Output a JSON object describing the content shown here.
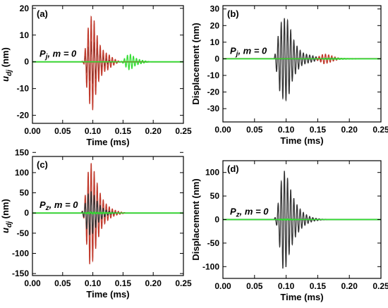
{
  "chart_data": [
    {
      "panel": "(a)",
      "type": "line",
      "xlabel": "Time (ms)",
      "ylabel": "u_dj (nm)",
      "ylabel_main": "u",
      "ylabel_sub": "dj",
      "ylabel_unit": " (nm)",
      "annotation_main": "P",
      "annotation_sub": "j",
      "annotation_rest": ", m = 0",
      "xlim": [
        0,
        0.25
      ],
      "ylim": [
        -23,
        21
      ],
      "xticks": [
        "0.00",
        "0.05",
        "0.10",
        "0.15",
        "0.20",
        "0.25"
      ],
      "yticks": [
        "20",
        "10",
        "0",
        "-10",
        "-20"
      ],
      "grid": false,
      "series": [
        {
          "color": "#333333",
          "peaks": [
            [
              0.085,
              0.4
            ],
            [
              0.09,
              4
            ],
            [
              0.095,
              7
            ],
            [
              0.1,
              8
            ],
            [
              0.105,
              6
            ],
            [
              0.11,
              4
            ],
            [
              0.115,
              2.5
            ],
            [
              0.12,
              1.5
            ],
            [
              0.125,
              0.8
            ],
            [
              0.13,
              0.3
            ]
          ]
        },
        {
          "color": "#c0392b",
          "peaks": [
            [
              0.085,
              0.5
            ],
            [
              0.09,
              10
            ],
            [
              0.095,
              16
            ],
            [
              0.1,
              18
            ],
            [
              0.105,
              12
            ],
            [
              0.11,
              7
            ],
            [
              0.115,
              5
            ],
            [
              0.12,
              3.5
            ],
            [
              0.125,
              3
            ],
            [
              0.13,
              2
            ],
            [
              0.135,
              1.2
            ],
            [
              0.14,
              0.5
            ]
          ]
        },
        {
          "color": "#33dd33",
          "peaks": [
            [
              0.15,
              0.5
            ],
            [
              0.155,
              2
            ],
            [
              0.16,
              3
            ],
            [
              0.165,
              2.5
            ],
            [
              0.17,
              1.5
            ],
            [
              0.175,
              1
            ],
            [
              0.18,
              0.7
            ],
            [
              0.185,
              0.4
            ],
            [
              0.19,
              0.2
            ]
          ]
        }
      ]
    },
    {
      "panel": "(b)",
      "type": "line",
      "xlabel": "Time (ms)",
      "ylabel": "Displacement (nm)",
      "annotation_main": "P",
      "annotation_sub": "j",
      "annotation_rest": ", m = 0",
      "xlim": [
        0,
        0.25
      ],
      "ylim": [
        -38,
        32
      ],
      "xticks": [
        "0.00",
        "0.05",
        "0.10",
        "0.15",
        "0.20",
        "0.25"
      ],
      "yticks": [
        "30",
        "20",
        "10",
        "0",
        "-10",
        "-20",
        "-30"
      ],
      "grid": false,
      "series": [
        {
          "color": "#333333",
          "peaks": [
            [
              0.085,
              8
            ],
            [
              0.09,
              20
            ],
            [
              0.095,
              24
            ],
            [
              0.1,
              25
            ],
            [
              0.105,
              21
            ],
            [
              0.11,
              13
            ],
            [
              0.115,
              9
            ],
            [
              0.12,
              6
            ],
            [
              0.125,
              4
            ],
            [
              0.13,
              3
            ],
            [
              0.135,
              2.5
            ],
            [
              0.14,
              2
            ],
            [
              0.145,
              1.4
            ],
            [
              0.15,
              1
            ],
            [
              0.155,
              0.6
            ]
          ]
        },
        {
          "color": "#c0392b",
          "peaks": [
            [
              0.15,
              1
            ],
            [
              0.155,
              2
            ],
            [
              0.16,
              3
            ],
            [
              0.165,
              2.6
            ],
            [
              0.17,
              2
            ],
            [
              0.175,
              1.3
            ],
            [
              0.18,
              0.8
            ]
          ]
        },
        {
          "color": "#33dd33",
          "peaks": [
            [
              0.16,
              0.3
            ],
            [
              0.17,
              0.5
            ],
            [
              0.18,
              0.4
            ],
            [
              0.19,
              0.3
            ],
            [
              0.2,
              0.2
            ],
            [
              0.21,
              0.1
            ]
          ]
        }
      ]
    },
    {
      "panel": "(c)",
      "type": "line",
      "xlabel": "Time (ms)",
      "ylabel": "u_dj (nm)",
      "ylabel_main": "u",
      "ylabel_sub": "dj",
      "ylabel_unit": " (nm)",
      "annotation_main": "P",
      "annotation_sub": "z",
      "annotation_rest": ", m = 0",
      "xlim": [
        0,
        0.25
      ],
      "ylim": [
        -155,
        140
      ],
      "xticks": [
        "0.00",
        "0.05",
        "0.10",
        "0.15",
        "0.20",
        "0.25"
      ],
      "yticks": [
        "150",
        "100",
        "50",
        "0",
        "-50",
        "-100",
        "-150"
      ],
      "grid": false,
      "series": [
        {
          "color": "#c0392b",
          "peaks": [
            [
              0.085,
              12
            ],
            [
              0.09,
              80
            ],
            [
              0.095,
              128
            ],
            [
              0.1,
              118
            ],
            [
              0.105,
              86
            ],
            [
              0.11,
              58
            ],
            [
              0.115,
              38
            ],
            [
              0.12,
              26
            ],
            [
              0.125,
              18
            ],
            [
              0.13,
              12
            ],
            [
              0.135,
              8
            ],
            [
              0.14,
              5
            ],
            [
              0.145,
              3
            ],
            [
              0.15,
              1.5
            ]
          ]
        },
        {
          "color": "#333333",
          "peaks": [
            [
              0.085,
              10
            ],
            [
              0.09,
              40
            ],
            [
              0.095,
              55
            ],
            [
              0.1,
              50
            ],
            [
              0.105,
              35
            ],
            [
              0.11,
              22
            ],
            [
              0.115,
              14
            ],
            [
              0.12,
              9
            ],
            [
              0.125,
              5
            ],
            [
              0.13,
              3
            ],
            [
              0.135,
              1.5
            ]
          ]
        },
        {
          "color": "#33dd33",
          "peaks": [
            [
              0.09,
              2
            ],
            [
              0.1,
              2.5
            ],
            [
              0.11,
              2
            ],
            [
              0.12,
              1.5
            ],
            [
              0.13,
              1
            ]
          ]
        }
      ]
    },
    {
      "panel": "(d)",
      "type": "line",
      "xlabel": "Time (ms)",
      "ylabel": "Displacement (nm)",
      "annotation_main": "P",
      "annotation_sub": "z",
      "annotation_rest": ", m = 0",
      "xlim": [
        0,
        0.25
      ],
      "ylim": [
        -125,
        125
      ],
      "xticks": [
        "0.00",
        "0.05",
        "0.10",
        "0.15",
        "0.20",
        "0.25"
      ],
      "yticks": [
        "100",
        "50",
        "0",
        "-50",
        "-100"
      ],
      "grid": false,
      "series": [
        {
          "color": "#333333",
          "peaks": [
            [
              0.085,
              12
            ],
            [
              0.09,
              60
            ],
            [
              0.095,
              106
            ],
            [
              0.1,
              100
            ],
            [
              0.105,
              72
            ],
            [
              0.11,
              52
            ],
            [
              0.115,
              36
            ],
            [
              0.12,
              26
            ],
            [
              0.125,
              18
            ],
            [
              0.13,
              12
            ],
            [
              0.135,
              8
            ],
            [
              0.14,
              5
            ],
            [
              0.145,
              3
            ],
            [
              0.15,
              2
            ],
            [
              0.155,
              1
            ],
            [
              0.16,
              0.5
            ]
          ]
        },
        {
          "color": "#33dd33",
          "peaks": [
            [
              0.09,
              1
            ],
            [
              0.1,
              1.5
            ],
            [
              0.11,
              1
            ],
            [
              0.12,
              0.5
            ]
          ]
        }
      ]
    }
  ]
}
